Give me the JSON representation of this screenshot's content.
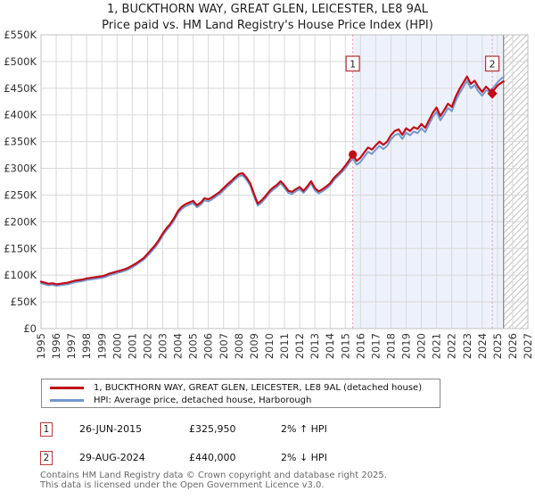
{
  "header": {
    "title": "1, BUCKTHORN WAY, GREAT GLEN, LEICESTER, LE8 9AL",
    "subtitle": "Price paid vs. HM Land Registry's House Price Index (HPI)"
  },
  "colors": {
    "property": "#c00d17",
    "hpi": "#7397ce",
    "event_line": "#f09aa4",
    "badge_border": "#b93a3a",
    "grid": "#d9d9d9",
    "frame": "#c0c0c0",
    "shade": "#edf1fb",
    "hatch": "#c2c2c2",
    "hatch_edge": "#8c8c8c",
    "tick_text": "#333333"
  },
  "chart_data": {
    "type": "line",
    "unit": "GBP_thousands",
    "x_axis": {
      "min": 1995,
      "max": 2027,
      "tick_labels": [
        "1995",
        "1996",
        "1997",
        "1998",
        "1999",
        "2000",
        "2001",
        "2002",
        "2003",
        "2004",
        "2005",
        "2006",
        "2007",
        "2008",
        "2009",
        "2010",
        "2011",
        "2012",
        "2013",
        "2014",
        "2015",
        "2016",
        "2017",
        "2018",
        "2019",
        "2020",
        "2021",
        "2022",
        "2023",
        "2024",
        "2025",
        "2026",
        "2027"
      ]
    },
    "y_axis": {
      "min_k": 0,
      "max_k": 550,
      "tick_step_k": 50,
      "tick_labels": [
        "£0",
        "£50K",
        "£100K",
        "£150K",
        "£200K",
        "£250K",
        "£300K",
        "£350K",
        "£400K",
        "£450K",
        "£500K",
        "£550K"
      ]
    },
    "shaded_region": {
      "from": 2015.49,
      "to": 2025.4
    },
    "hatch_region": {
      "from": 2025.4,
      "to": 2027
    },
    "series": [
      {
        "name": "1, BUCKTHORN WAY, GREAT GLEN, LEICESTER, LE8 9AL (detached house)",
        "color_key": "property",
        "points": [
          [
            1995.0,
            88
          ],
          [
            1995.25,
            86
          ],
          [
            1995.5,
            84
          ],
          [
            1995.75,
            85
          ],
          [
            1996.0,
            83
          ],
          [
            1996.25,
            84
          ],
          [
            1996.5,
            85
          ],
          [
            1996.75,
            86
          ],
          [
            1997.0,
            88
          ],
          [
            1997.25,
            90
          ],
          [
            1997.5,
            91
          ],
          [
            1997.75,
            92
          ],
          [
            1998.0,
            94
          ],
          [
            1998.25,
            95
          ],
          [
            1998.5,
            96
          ],
          [
            1998.75,
            97
          ],
          [
            1999.0,
            98
          ],
          [
            1999.25,
            100
          ],
          [
            1999.5,
            103
          ],
          [
            1999.75,
            105
          ],
          [
            2000.0,
            107
          ],
          [
            2000.25,
            109
          ],
          [
            2000.5,
            111
          ],
          [
            2000.75,
            114
          ],
          [
            2001.0,
            118
          ],
          [
            2001.25,
            122
          ],
          [
            2001.5,
            127
          ],
          [
            2001.75,
            132
          ],
          [
            2002.0,
            140
          ],
          [
            2002.25,
            148
          ],
          [
            2002.5,
            156
          ],
          [
            2002.75,
            166
          ],
          [
            2003.0,
            178
          ],
          [
            2003.25,
            188
          ],
          [
            2003.5,
            196
          ],
          [
            2003.75,
            207
          ],
          [
            2004.0,
            220
          ],
          [
            2004.25,
            228
          ],
          [
            2004.5,
            233
          ],
          [
            2004.75,
            236
          ],
          [
            2005.0,
            239
          ],
          [
            2005.25,
            231
          ],
          [
            2005.5,
            236
          ],
          [
            2005.75,
            244
          ],
          [
            2006.0,
            242
          ],
          [
            2006.25,
            246
          ],
          [
            2006.5,
            251
          ],
          [
            2006.75,
            256
          ],
          [
            2007.0,
            263
          ],
          [
            2007.25,
            270
          ],
          [
            2007.5,
            276
          ],
          [
            2007.75,
            283
          ],
          [
            2008.0,
            289
          ],
          [
            2008.25,
            291
          ],
          [
            2008.5,
            283
          ],
          [
            2008.75,
            272
          ],
          [
            2009.0,
            252
          ],
          [
            2009.25,
            234
          ],
          [
            2009.5,
            240
          ],
          [
            2009.75,
            248
          ],
          [
            2010.0,
            257
          ],
          [
            2010.25,
            264
          ],
          [
            2010.5,
            269
          ],
          [
            2010.75,
            276
          ],
          [
            2011.0,
            268
          ],
          [
            2011.25,
            258
          ],
          [
            2011.5,
            256
          ],
          [
            2011.75,
            261
          ],
          [
            2012.0,
            265
          ],
          [
            2012.25,
            258
          ],
          [
            2012.5,
            266
          ],
          [
            2012.75,
            276
          ],
          [
            2013.0,
            263
          ],
          [
            2013.25,
            257
          ],
          [
            2013.5,
            261
          ],
          [
            2013.75,
            266
          ],
          [
            2014.0,
            272
          ],
          [
            2014.25,
            282
          ],
          [
            2014.5,
            289
          ],
          [
            2014.75,
            296
          ],
          [
            2015.0,
            305
          ],
          [
            2015.25,
            315
          ],
          [
            2015.49,
            326
          ],
          [
            2015.75,
            314
          ],
          [
            2016.0,
            320
          ],
          [
            2016.25,
            330
          ],
          [
            2016.5,
            339
          ],
          [
            2016.75,
            335
          ],
          [
            2017.0,
            343
          ],
          [
            2017.25,
            350
          ],
          [
            2017.5,
            344
          ],
          [
            2017.75,
            350
          ],
          [
            2018.0,
            362
          ],
          [
            2018.25,
            370
          ],
          [
            2018.5,
            373
          ],
          [
            2018.75,
            363
          ],
          [
            2019.0,
            375
          ],
          [
            2019.25,
            370
          ],
          [
            2019.5,
            377
          ],
          [
            2019.75,
            374
          ],
          [
            2020.0,
            383
          ],
          [
            2020.25,
            376
          ],
          [
            2020.5,
            390
          ],
          [
            2020.75,
            404
          ],
          [
            2021.0,
            414
          ],
          [
            2021.25,
            398
          ],
          [
            2021.5,
            409
          ],
          [
            2021.75,
            421
          ],
          [
            2022.0,
            415
          ],
          [
            2022.25,
            434
          ],
          [
            2022.5,
            448
          ],
          [
            2022.75,
            460
          ],
          [
            2023.0,
            472
          ],
          [
            2023.25,
            458
          ],
          [
            2023.5,
            464
          ],
          [
            2023.75,
            452
          ],
          [
            2024.0,
            443
          ],
          [
            2024.25,
            453
          ],
          [
            2024.5,
            446
          ],
          [
            2024.66,
            440
          ],
          [
            2024.75,
            446
          ],
          [
            2025.0,
            455
          ],
          [
            2025.25,
            460
          ],
          [
            2025.4,
            463
          ]
        ]
      },
      {
        "name": "HPI: Average price, detached house, Harborough",
        "color_key": "hpi",
        "points": [
          [
            1995.0,
            85
          ],
          [
            1995.25,
            83
          ],
          [
            1995.5,
            81
          ],
          [
            1995.75,
            82
          ],
          [
            1996.0,
            80
          ],
          [
            1996.25,
            81
          ],
          [
            1996.5,
            82
          ],
          [
            1996.75,
            83
          ],
          [
            1997.0,
            85
          ],
          [
            1997.25,
            87
          ],
          [
            1997.5,
            88
          ],
          [
            1997.75,
            89
          ],
          [
            1998.0,
            91
          ],
          [
            1998.25,
            92
          ],
          [
            1998.5,
            93
          ],
          [
            1998.75,
            94
          ],
          [
            1999.0,
            95
          ],
          [
            1999.25,
            97
          ],
          [
            1999.5,
            100
          ],
          [
            1999.75,
            102
          ],
          [
            2000.0,
            104
          ],
          [
            2000.25,
            106
          ],
          [
            2000.5,
            108
          ],
          [
            2000.75,
            111
          ],
          [
            2001.0,
            115
          ],
          [
            2001.25,
            119
          ],
          [
            2001.5,
            124
          ],
          [
            2001.75,
            129
          ],
          [
            2002.0,
            136
          ],
          [
            2002.25,
            144
          ],
          [
            2002.5,
            152
          ],
          [
            2002.75,
            162
          ],
          [
            2003.0,
            174
          ],
          [
            2003.25,
            184
          ],
          [
            2003.5,
            192
          ],
          [
            2003.75,
            203
          ],
          [
            2004.0,
            216
          ],
          [
            2004.25,
            224
          ],
          [
            2004.5,
            229
          ],
          [
            2004.75,
            232
          ],
          [
            2005.0,
            235
          ],
          [
            2005.25,
            227
          ],
          [
            2005.5,
            232
          ],
          [
            2005.75,
            240
          ],
          [
            2006.0,
            238
          ],
          [
            2006.25,
            242
          ],
          [
            2006.5,
            247
          ],
          [
            2006.75,
            252
          ],
          [
            2007.0,
            259
          ],
          [
            2007.25,
            266
          ],
          [
            2007.5,
            272
          ],
          [
            2007.75,
            279
          ],
          [
            2008.0,
            285
          ],
          [
            2008.25,
            287
          ],
          [
            2008.5,
            279
          ],
          [
            2008.75,
            268
          ],
          [
            2009.0,
            248
          ],
          [
            2009.25,
            230
          ],
          [
            2009.5,
            236
          ],
          [
            2009.75,
            244
          ],
          [
            2010.0,
            253
          ],
          [
            2010.25,
            260
          ],
          [
            2010.5,
            265
          ],
          [
            2010.75,
            272
          ],
          [
            2011.0,
            264
          ],
          [
            2011.25,
            254
          ],
          [
            2011.5,
            252
          ],
          [
            2011.75,
            257
          ],
          [
            2012.0,
            261
          ],
          [
            2012.25,
            254
          ],
          [
            2012.5,
            262
          ],
          [
            2012.75,
            272
          ],
          [
            2013.0,
            259
          ],
          [
            2013.25,
            253
          ],
          [
            2013.5,
            257
          ],
          [
            2013.75,
            262
          ],
          [
            2014.0,
            268
          ],
          [
            2014.25,
            278
          ],
          [
            2014.5,
            285
          ],
          [
            2014.75,
            292
          ],
          [
            2015.0,
            300
          ],
          [
            2015.25,
            310
          ],
          [
            2015.5,
            318
          ],
          [
            2015.75,
            307
          ],
          [
            2016.0,
            312
          ],
          [
            2016.25,
            322
          ],
          [
            2016.5,
            331
          ],
          [
            2016.75,
            327
          ],
          [
            2017.0,
            335
          ],
          [
            2017.25,
            342
          ],
          [
            2017.5,
            336
          ],
          [
            2017.75,
            342
          ],
          [
            2018.0,
            354
          ],
          [
            2018.25,
            362
          ],
          [
            2018.5,
            365
          ],
          [
            2018.75,
            355
          ],
          [
            2019.0,
            367
          ],
          [
            2019.25,
            362
          ],
          [
            2019.5,
            369
          ],
          [
            2019.75,
            366
          ],
          [
            2020.0,
            375
          ],
          [
            2020.25,
            368
          ],
          [
            2020.5,
            382
          ],
          [
            2020.75,
            396
          ],
          [
            2021.0,
            406
          ],
          [
            2021.25,
            390
          ],
          [
            2021.5,
            401
          ],
          [
            2021.75,
            413
          ],
          [
            2022.0,
            407
          ],
          [
            2022.25,
            426
          ],
          [
            2022.5,
            440
          ],
          [
            2022.75,
            452
          ],
          [
            2023.0,
            464
          ],
          [
            2023.25,
            450
          ],
          [
            2023.5,
            456
          ],
          [
            2023.75,
            444
          ],
          [
            2024.0,
            436
          ],
          [
            2024.25,
            446
          ],
          [
            2024.5,
            444
          ],
          [
            2024.75,
            452
          ],
          [
            2025.0,
            461
          ],
          [
            2025.25,
            468
          ],
          [
            2025.4,
            471
          ]
        ]
      }
    ],
    "sales": [
      {
        "label": "1",
        "date": "26-JUN-2015",
        "price_display": "£325,950",
        "hpi_delta": "2% ↑ HPI",
        "x": 2015.49,
        "value_k": 325.95,
        "marker": "circle"
      },
      {
        "label": "2",
        "date": "29-AUG-2024",
        "price_display": "£440,000",
        "hpi_delta": "2% ↓ HPI",
        "x": 2024.66,
        "value_k": 440,
        "marker": "diamond"
      }
    ]
  },
  "footer": {
    "line1": "Contains HM Land Registry data © Crown copyright and database right 2025.",
    "line2": "This data is licensed under the Open Government Licence v3.0."
  }
}
